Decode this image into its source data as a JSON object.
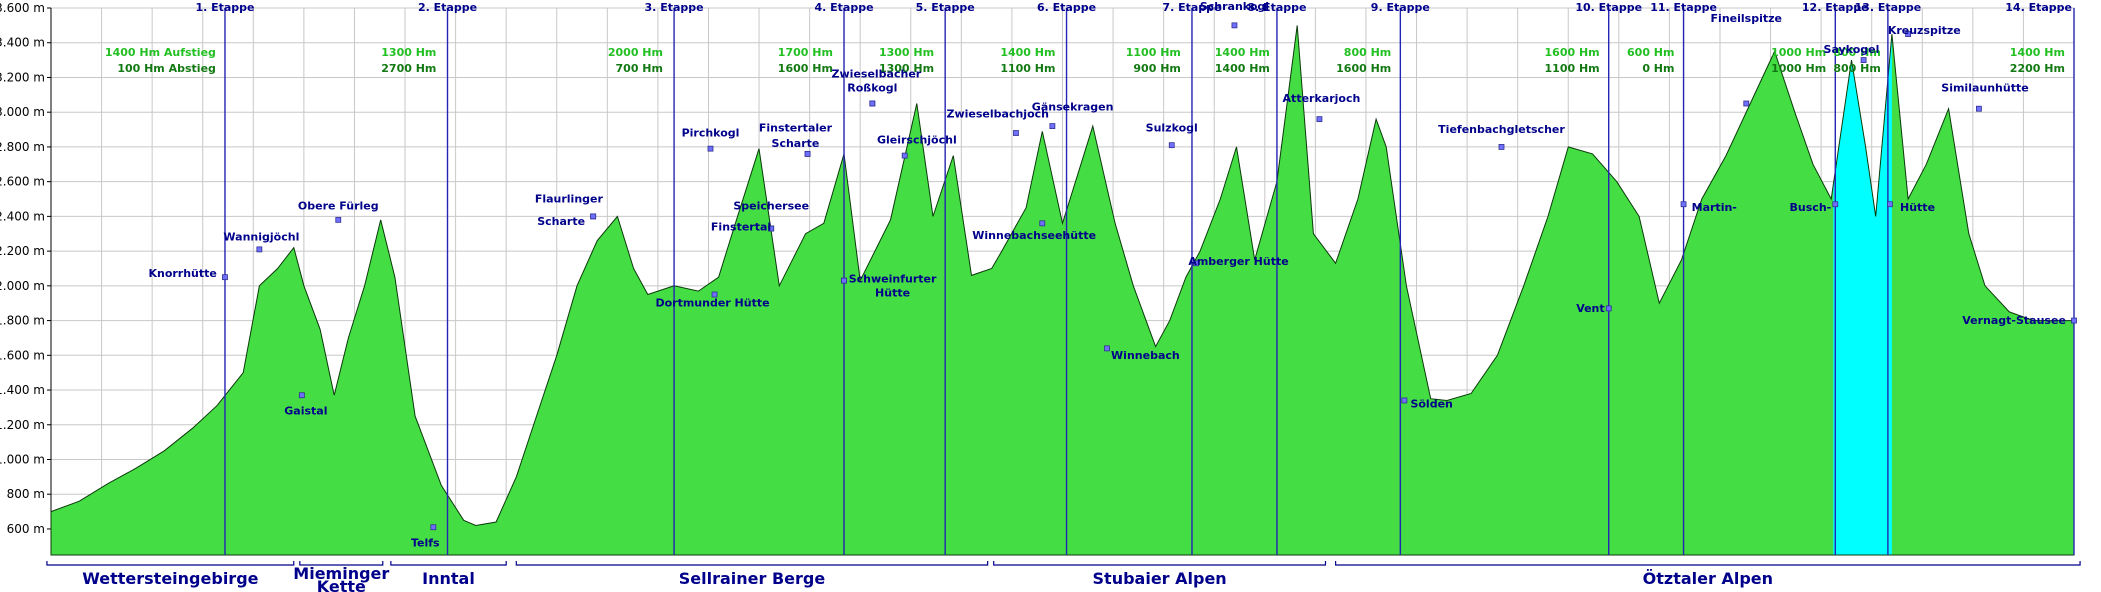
{
  "chart_data": {
    "type": "area",
    "title": "",
    "xlabel": "",
    "ylabel": "",
    "ylim": [
      450,
      3600
    ],
    "xlim": [
      0,
      100
    ],
    "y_ticks": [
      {
        "value": 600,
        "label": "600 m"
      },
      {
        "value": 800,
        "label": "800 m"
      },
      {
        "value": 1000,
        "label": "1.000 m"
      },
      {
        "value": 1200,
        "label": "1.200 m"
      },
      {
        "value": 1400,
        "label": "1.400 m"
      },
      {
        "value": 1600,
        "label": "1.600 m"
      },
      {
        "value": 1800,
        "label": "1.800 m"
      },
      {
        "value": 2000,
        "label": "2.000 m"
      },
      {
        "value": 2200,
        "label": "2.200 m"
      },
      {
        "value": 2400,
        "label": "2.400 m"
      },
      {
        "value": 2600,
        "label": "2.600 m"
      },
      {
        "value": 2800,
        "label": "2.800 m"
      },
      {
        "value": 3000,
        "label": "3.000 m"
      },
      {
        "value": 3200,
        "label": "3.200 m"
      },
      {
        "value": 3400,
        "label": "3.400 m"
      },
      {
        "value": 3600,
        "label": "3.600 m"
      }
    ],
    "grid": true,
    "fill_color": "#44dd44",
    "highlight_color": "#00ffff",
    "stage_line_color": "#2424b4",
    "highlight_range": [
      88.1,
      91.0
    ],
    "profile": {
      "x": [
        0,
        1.4,
        2.8,
        4.2,
        5.6,
        7.0,
        8.2,
        9.5,
        10.3,
        11.2,
        12.0,
        12.5,
        13.3,
        14.0,
        14.7,
        15.5,
        16.3,
        17.0,
        18.0,
        19.3,
        20.4,
        21.0,
        22.0,
        23.0,
        24.0,
        25.0,
        26.0,
        27.0,
        28.0,
        28.8,
        29.5,
        30.8,
        32.0,
        33.0,
        33.8,
        35.0,
        36.0,
        37.3,
        38.2,
        39.2,
        40.0,
        41.5,
        42.8,
        43.6,
        44.6,
        45.5,
        46.5,
        47.0,
        48.2,
        49.0,
        50.0,
        51.5,
        52.6,
        53.5,
        54.6,
        55.3,
        56.1,
        56.8,
        57.8,
        58.6,
        59.5,
        60.6,
        61.6,
        62.4,
        63.5,
        64.6,
        65.5,
        66.0,
        67.0,
        68.2,
        69.0,
        70.2,
        71.5,
        72.8,
        74.0,
        75.0,
        76.2,
        77.4,
        78.5,
        79.5,
        80.6,
        81.6,
        82.8,
        84.0,
        85.2,
        86.2,
        87.1,
        88.0,
        89.0,
        89.7,
        90.2,
        91.0,
        91.8,
        92.7,
        93.8,
        94.8,
        95.6,
        96.8,
        98.0,
        99.3,
        100
      ],
      "y": [
        700,
        760,
        860,
        950,
        1050,
        1180,
        1310,
        1500,
        2000,
        2100,
        2220,
        2000,
        1750,
        1370,
        1700,
        2000,
        2380,
        2050,
        1250,
        850,
        650,
        620,
        640,
        900,
        1250,
        1600,
        2000,
        2260,
        2400,
        2100,
        1950,
        2000,
        1970,
        2050,
        2350,
        2790,
        2000,
        2300,
        2360,
        2760,
        2030,
        2380,
        3050,
        2400,
        2750,
        2060,
        2100,
        2200,
        2450,
        2890,
        2360,
        2920,
        2360,
        2000,
        1650,
        1800,
        2050,
        2200,
        2500,
        2800,
        2150,
        2600,
        3500,
        2300,
        2130,
        2500,
        2960,
        2800,
        2000,
        1350,
        1340,
        1380,
        1600,
        2000,
        2400,
        2800,
        2760,
        2600,
        2400,
        1900,
        2150,
        2500,
        2750,
        3050,
        3350,
        3000,
        2700,
        2500,
        3300,
        2800,
        2400,
        3450,
        2500,
        2700,
        3020,
        2300,
        2000,
        1850,
        1800,
        1800,
        1800
      ]
    },
    "stages": [
      {
        "x": 8.6,
        "label": "1. Etappe"
      },
      {
        "x": 19.6,
        "label": "2. Etappe"
      },
      {
        "x": 30.8,
        "label": "3. Etappe"
      },
      {
        "x": 39.2,
        "label": "4. Etappe"
      },
      {
        "x": 44.2,
        "label": "5. Etappe"
      },
      {
        "x": 50.2,
        "label": "6. Etappe"
      },
      {
        "x": 56.4,
        "label": "7. Etappe"
      },
      {
        "x": 60.6,
        "label": "8. Etappe"
      },
      {
        "x": 66.7,
        "label": "9. Etappe"
      },
      {
        "x": 77.0,
        "label": "10. Etappe"
      },
      {
        "x": 80.7,
        "label": "11. Etappe"
      },
      {
        "x": 88.2,
        "label": "12. Etappe"
      },
      {
        "x": 90.8,
        "label": "13. Etappe"
      },
      {
        "x": 100.0,
        "label": "14. Etappe"
      }
    ],
    "elevation_gain": [
      {
        "x": 8.3,
        "up": "1400 Hm Aufstieg",
        "down": "100 Hm Abstieg"
      },
      {
        "x": 19.2,
        "up": "1300 Hm",
        "down": "2700 Hm"
      },
      {
        "x": 30.4,
        "up": "2000 Hm",
        "down": "700 Hm"
      },
      {
        "x": 38.8,
        "up": "1700 Hm",
        "down": "1600 Hm"
      },
      {
        "x": 43.8,
        "up": "1300 Hm",
        "down": "1300 Hm"
      },
      {
        "x": 49.8,
        "up": "1400 Hm",
        "down": "1100 Hm"
      },
      {
        "x": 56.0,
        "up": "1100 Hm",
        "down": "900 Hm"
      },
      {
        "x": 60.4,
        "up": "1400 Hm",
        "down": "1400 Hm"
      },
      {
        "x": 66.4,
        "up": "800 Hm",
        "down": "1600 Hm"
      },
      {
        "x": 76.7,
        "up": "1600 Hm",
        "down": "1100 Hm"
      },
      {
        "x": 80.4,
        "up": "600 Hm",
        "down": "0 Hm"
      },
      {
        "x": 87.9,
        "up": "1000 Hm",
        "down": "1000 Hm"
      },
      {
        "x": 90.6,
        "up": "800 Hm",
        "down": "800 Hm"
      },
      {
        "x": 99.7,
        "up": "1400 Hm",
        "down": "2200 Hm"
      }
    ],
    "waypoints": [
      {
        "x": 8.6,
        "y": 2050,
        "label": "Knorrhütte",
        "lx": 8.2,
        "ly": 2050,
        "anchor": "end"
      },
      {
        "x": 10.3,
        "y": 2210,
        "label": "Wannigjöchl",
        "lx": 10.4,
        "ly": 2260,
        "anchor": "middle"
      },
      {
        "x": 12.4,
        "y": 1370,
        "label": "Gaistal",
        "lx": 12.6,
        "ly": 1260,
        "anchor": "middle"
      },
      {
        "x": 14.2,
        "y": 2380,
        "label": "Obere Fürleg",
        "lx": 14.2,
        "ly": 2440,
        "anchor": "middle"
      },
      {
        "x": 18.9,
        "y": 610,
        "label": "Telfs",
        "lx": 18.5,
        "ly": 500,
        "anchor": "middle"
      },
      {
        "x": 26.8,
        "y": 2400,
        "label": "Flaurlinger",
        "lx": 25.6,
        "ly": 2480,
        "anchor": "middle"
      },
      {
        "x": 26.8,
        "y": 2400,
        "label": "Scharte",
        "lx": 26.4,
        "ly": 2350,
        "anchor": "end"
      },
      {
        "x": 32.8,
        "y": 1950,
        "label": "Dortmunder Hütte",
        "lx": 32.7,
        "ly": 1880,
        "anchor": "middle"
      },
      {
        "x": 32.6,
        "y": 2790,
        "label": "Pirchkogl",
        "lx": 32.6,
        "ly": 2860,
        "anchor": "middle"
      },
      {
        "x": 35.6,
        "y": 2330,
        "label": "Speichersee",
        "lx": 35.6,
        "ly": 2440,
        "anchor": "middle"
      },
      {
        "x": 35.6,
        "y": 2330,
        "label": "Finstertal",
        "lx": 35.6,
        "ly": 2320,
        "anchor": "end"
      },
      {
        "x": 37.4,
        "y": 2760,
        "label": "Finstertaler",
        "lx": 36.8,
        "ly": 2890,
        "anchor": "middle"
      },
      {
        "x": 37.4,
        "y": 2760,
        "label": "Scharte",
        "lx": 36.8,
        "ly": 2800,
        "anchor": "middle"
      },
      {
        "x": 40.6,
        "y": 3050,
        "label": "Zwieselbacher",
        "lx": 40.8,
        "ly": 3200,
        "anchor": "middle"
      },
      {
        "x": 40.6,
        "y": 3050,
        "label": "Roßkogl",
        "lx": 40.6,
        "ly": 3120,
        "anchor": "middle"
      },
      {
        "x": 42.2,
        "y": 2750,
        "label": "Gleirschjöchl",
        "lx": 42.8,
        "ly": 2820,
        "anchor": "middle"
      },
      {
        "x": 39.2,
        "y": 2030,
        "label": "Schweinfurter",
        "lx": 41.6,
        "ly": 2020,
        "anchor": "middle"
      },
      {
        "x": 39.2,
        "y": 2030,
        "label": "Hütte",
        "lx": 41.6,
        "ly": 1940,
        "anchor": "middle"
      },
      {
        "x": 47.7,
        "y": 2880,
        "label": "Zwieselbachjoch",
        "lx": 46.8,
        "ly": 2970,
        "anchor": "middle"
      },
      {
        "x": 49.5,
        "y": 2920,
        "label": "Gänsekragen",
        "lx": 50.5,
        "ly": 3010,
        "anchor": "middle"
      },
      {
        "x": 49.0,
        "y": 2360,
        "label": "Winnebachseehütte",
        "lx": 48.6,
        "ly": 2270,
        "anchor": "middle"
      },
      {
        "x": 52.2,
        "y": 1640,
        "label": "Winnebach",
        "lx": 52.4,
        "ly": 1580,
        "anchor": "start"
      },
      {
        "x": 55.4,
        "y": 2810,
        "label": "Sulzkogl",
        "lx": 55.4,
        "ly": 2890,
        "anchor": "middle"
      },
      {
        "x": 56.6,
        "y": 2130,
        "label": "Amberger Hütte",
        "lx": 58.7,
        "ly": 2120,
        "anchor": "middle"
      },
      {
        "x": 58.5,
        "y": 3500,
        "label": "Schrankogl",
        "lx": 58.5,
        "ly": 3590,
        "anchor": "middle"
      },
      {
        "x": 62.7,
        "y": 2960,
        "label": "Atterkarjoch",
        "lx": 62.8,
        "ly": 3060,
        "anchor": "middle"
      },
      {
        "x": 66.9,
        "y": 1340,
        "label": "Sölden",
        "lx": 67.2,
        "ly": 1300,
        "anchor": "start"
      },
      {
        "x": 71.7,
        "y": 2800,
        "label": "Tiefenbachgletscher",
        "lx": 71.7,
        "ly": 2880,
        "anchor": "middle"
      },
      {
        "x": 77.0,
        "y": 1870,
        "label": "Vent",
        "lx": 76.8,
        "ly": 1850,
        "anchor": "end"
      },
      {
        "x": 80.7,
        "y": 2470,
        "label": "Martin-",
        "lx": 81.1,
        "ly": 2430,
        "anchor": "start"
      },
      {
        "x": 83.8,
        "y": 3050,
        "label": "Fineilspitze",
        "lx": 83.8,
        "ly": 3520,
        "anchor": "middle"
      },
      {
        "x": 88.2,
        "y": 2470,
        "label": "Busch-",
        "lx": 88.0,
        "ly": 2430,
        "anchor": "end"
      },
      {
        "x": 89.6,
        "y": 3300,
        "label": "Saykogel",
        "lx": 89.0,
        "ly": 3340,
        "anchor": "middle"
      },
      {
        "x": 90.9,
        "y": 2470,
        "label": "Hütte",
        "lx": 91.4,
        "ly": 2430,
        "anchor": "start"
      },
      {
        "x": 91.8,
        "y": 3450,
        "label": "Kreuzspitze",
        "lx": 92.6,
        "ly": 3450,
        "anchor": "middle"
      },
      {
        "x": 95.3,
        "y": 3020,
        "label": "Similaunhütte",
        "lx": 95.6,
        "ly": 3120,
        "anchor": "middle"
      },
      {
        "x": 100.0,
        "y": 1800,
        "label": "Vernagt-Stausee",
        "lx": 99.6,
        "ly": 1780,
        "anchor": "end"
      }
    ],
    "regions": [
      {
        "start": -0.2,
        "end": 12.0,
        "label": "Wettersteingebirge"
      },
      {
        "start": 12.3,
        "end": 16.4,
        "label": "Mieminger",
        "label2": "Kette"
      },
      {
        "start": 16.8,
        "end": 22.5,
        "label": "Inntal"
      },
      {
        "start": 23.0,
        "end": 46.3,
        "label": "Sellrainer Berge"
      },
      {
        "start": 46.6,
        "end": 63.0,
        "label": "Stubaier Alpen"
      },
      {
        "start": 63.5,
        "end": 100.3,
        "label": "Ötztaler Alpen"
      }
    ]
  }
}
